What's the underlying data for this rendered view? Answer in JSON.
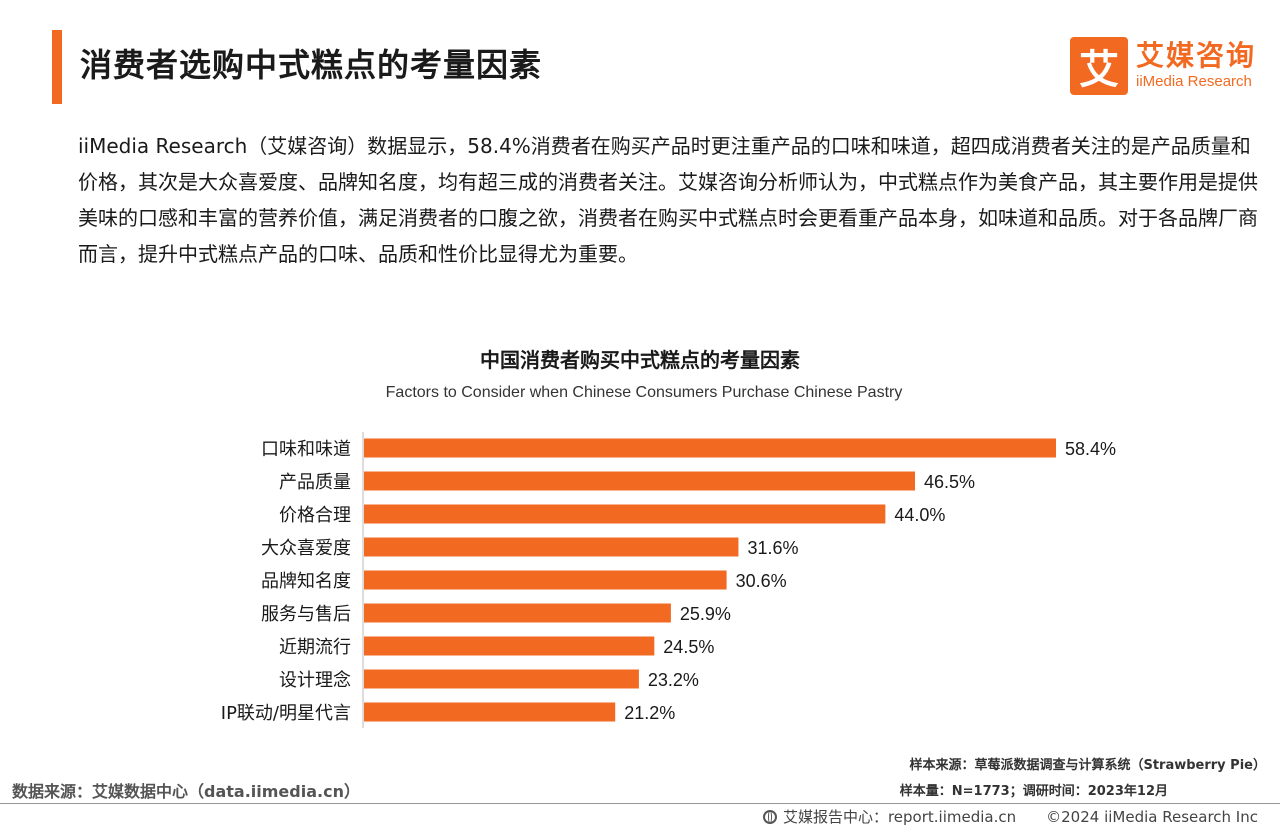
{
  "header": {
    "title": "消费者选购中式糕点的考量因素",
    "logo_mark": "艾",
    "logo_cn": "艾媒咨询",
    "logo_en": "iiMedia Research"
  },
  "body_text": "iiMedia Research（艾媒咨询）数据显示，58.4%消费者在购买产品时更注重产品的口味和味道，超四成消费者关注的是产品质量和价格，其次是大众喜爱度、品牌知名度，均有超三成的消费者关注。艾媒咨询分析师认为，中式糕点作为美食产品，其主要作用是提供美味的口感和丰富的营养价值，满足消费者的口腹之欲，消费者在购买中式糕点时会更看重产品本身，如味道和品质。对于各品牌厂商而言，提升中式糕点产品的口味、品质和性价比显得尤为重要。",
  "chart_data": {
    "type": "bar",
    "orientation": "horizontal",
    "title": "中国消费者购买中式糕点的考量因素",
    "subtitle": "Factors to Consider when Chinese Consumers Purchase Chinese Pastry",
    "categories": [
      "口味和味道",
      "产品质量",
      "价格合理",
      "大众喜爱度",
      "品牌知名度",
      "服务与售后",
      "近期流行",
      "设计理念",
      "IP联动/明星代言"
    ],
    "values": [
      58.4,
      46.5,
      44.0,
      31.6,
      30.6,
      25.9,
      24.5,
      23.2,
      21.2
    ],
    "value_labels": [
      "58.4%",
      "46.5%",
      "44.0%",
      "31.6%",
      "30.6%",
      "25.9%",
      "24.5%",
      "23.2%",
      "21.2%"
    ],
    "xlim": [
      0,
      58.4
    ],
    "bar_color": "#f26a21",
    "grid": false
  },
  "notes": {
    "sample_source": "样本来源：草莓派数据调查与计算系统（Strawberry Pie）",
    "sample_size": "样本量：N=1773；调研时间：2023年12月",
    "data_source": "数据来源：艾媒数据中心（data.iimedia.cn）"
  },
  "footer": {
    "report_center": "艾媒报告中心：report.iimedia.cn",
    "copyright": "©2024  iiMedia Research  Inc"
  },
  "colors": {
    "accent": "#f26a21"
  }
}
